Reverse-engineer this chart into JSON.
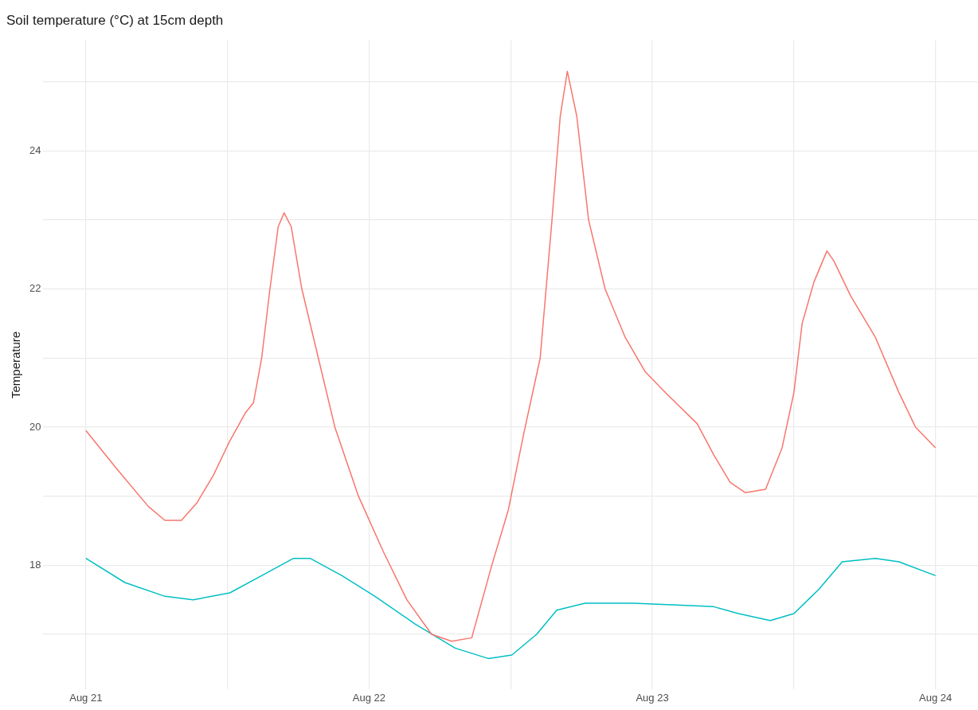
{
  "chart_data": {
    "type": "line",
    "title": "Soil temperature (°C) at 15cm depth",
    "ylabel": "Temperature",
    "xlim": [
      "--08-20T20:24",
      "--08-24T03:36"
    ],
    "xticks": [
      {
        "value": "--08-21",
        "label": "Aug 21"
      },
      {
        "value": "--08-21T12:00",
        "label": null
      },
      {
        "value": "--08-22",
        "label": "Aug 22"
      },
      {
        "value": "--08-22T12:00",
        "label": null
      },
      {
        "value": "--08-23",
        "label": "Aug 23"
      },
      {
        "value": "--08-23T12:00",
        "label": null
      },
      {
        "value": "--08-24",
        "label": "Aug 24"
      }
    ],
    "ylim": [
      16.2,
      25.6
    ],
    "yticks": [
      {
        "value": 17,
        "label": null
      },
      18,
      {
        "value": 19,
        "label": null
      },
      20,
      {
        "value": 21,
        "label": null
      },
      22,
      {
        "value": 23,
        "label": null
      },
      24,
      {
        "value": 25,
        "label": null
      }
    ],
    "grid": true,
    "legend": false,
    "series": [
      {
        "color": "#f8766d",
        "x": [
          "--08-21T00:00",
          "--08-21T02:36",
          "--08-21T05:18",
          "--08-21T06:42",
          "--08-21T08:06",
          "--08-21T09:24",
          "--08-21T10:48",
          "--08-21T12:12",
          "--08-21T13:30",
          "--08-21T14:12",
          "--08-21T14:54",
          "--08-21T15:36",
          "--08-21T16:18",
          "--08-21T16:48",
          "--08-21T17:24",
          "--08-21T18:18",
          "--08-21T19:42",
          "--08-21T21:06",
          "--08-21T23:06",
          "--08-22T01:12",
          "--08-22T03:12",
          "--08-22T05:18",
          "--08-22T07:00",
          "--08-22T08:42",
          "--08-22T10:24",
          "--08-22T11:48",
          "--08-22T13:06",
          "--08-22T14:30",
          "--08-22T15:30",
          "--08-22T16:12",
          "--08-22T16:48",
          "--08-22T17:36",
          "--08-22T18:36",
          "--08-22T20:00",
          "--08-22T21:42",
          "--08-22T23:24",
          "--08-23T01:06",
          "--08-23T03:48",
          "--08-23T05:12",
          "--08-23T06:36",
          "--08-23T07:54",
          "--08-23T09:36",
          "--08-23T11:00",
          "--08-23T12:00",
          "--08-23T12:42",
          "--08-23T13:42",
          "--08-23T14:48",
          "--08-23T15:24",
          "--08-23T16:48",
          "--08-23T18:54",
          "--08-23T20:54",
          "--08-23T22:18",
          "--08-24T00:00"
        ],
        "values": [
          19.95,
          19.4,
          18.85,
          18.65,
          18.65,
          18.9,
          19.3,
          19.8,
          20.2,
          20.35,
          21,
          22,
          22.9,
          23.1,
          22.9,
          22,
          21,
          20,
          19,
          18.2,
          17.5,
          17,
          16.9,
          16.95,
          18,
          18.8,
          19.9,
          21,
          23,
          24.5,
          25.15,
          24.5,
          23,
          22,
          21.3,
          20.8,
          20.5,
          20.05,
          19.6,
          19.2,
          19.05,
          19.1,
          19.7,
          20.5,
          21.5,
          22.1,
          22.55,
          22.4,
          21.9,
          21.3,
          20.5,
          20,
          19.7
        ]
      },
      {
        "color": "#00bfc4",
        "x": [
          "--08-21T00:00",
          "--08-21T03:18",
          "--08-21T06:42",
          "--08-21T09:06",
          "--08-21T12:12",
          "--08-21T14:54",
          "--08-21T17:36",
          "--08-21T19:00",
          "--08-21T21:42",
          "--08-22T00:30",
          "--08-22T03:54",
          "--08-22T07:18",
          "--08-22T10:06",
          "--08-22T12:06",
          "--08-22T14:12",
          "--08-22T15:54",
          "--08-22T18:18",
          "--08-22T22:24",
          "--08-23T02:30",
          "--08-23T05:12",
          "--08-23T07:18",
          "--08-23T10:00",
          "--08-23T12:00",
          "--08-23T14:06",
          "--08-23T16:06",
          "--08-23T18:54",
          "--08-23T20:54",
          "--08-24T00:00"
        ],
        "values": [
          18.1,
          17.75,
          17.55,
          17.5,
          17.6,
          17.85,
          18.1,
          18.1,
          17.85,
          17.55,
          17.15,
          16.8,
          16.65,
          16.7,
          17,
          17.35,
          17.45,
          17.45,
          17.42,
          17.4,
          17.3,
          17.2,
          17.3,
          17.65,
          18.05,
          18.1,
          18.05,
          17.85
        ]
      }
    ]
  }
}
